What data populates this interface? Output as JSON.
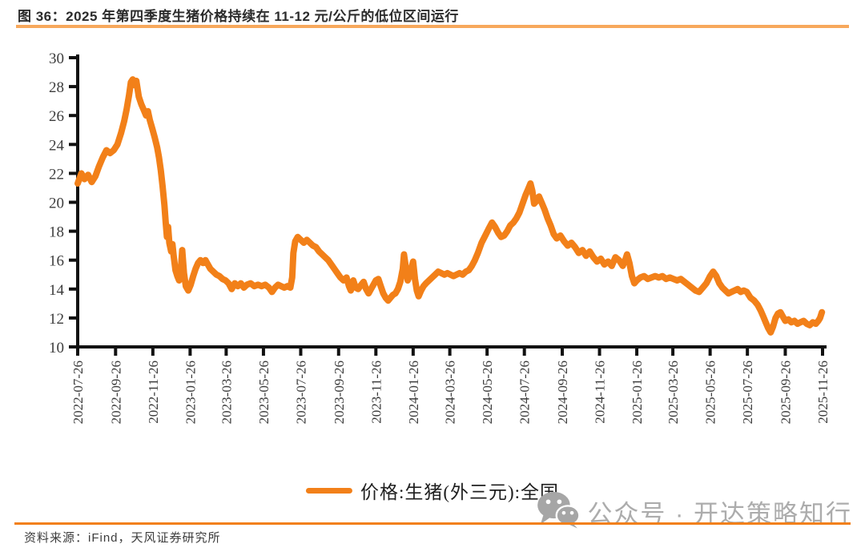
{
  "title": "图 36：2025 年第四季度生猪价格持续在 11-12 元/公斤的低位区间运行",
  "source": "资料来源：iFind，天风证券研究所",
  "watermark": {
    "icon": "wechat-icon",
    "text": "公众号 · 开达策略知行"
  },
  "legend": {
    "label": "价格:生猪(外三元):全国"
  },
  "colors": {
    "line": "#F28019",
    "top_rule": "#F7A85C",
    "bottom_rule": "#F28019",
    "axis": "#111111",
    "tick_label": "#3D3D3D",
    "title": "#2B2B2B",
    "source": "#3C3C3C",
    "watermark": "#ACACAC"
  },
  "chart_data": {
    "type": "line",
    "title": "",
    "xlabel": "",
    "ylabel": "",
    "ylim": [
      10,
      30
    ],
    "yticks": [
      10,
      12,
      14,
      16,
      18,
      20,
      22,
      24,
      26,
      28,
      30
    ],
    "xlim": [
      "2022-07-26",
      "2025-11-26"
    ],
    "xticks": [
      "2022-07-26",
      "2022-09-26",
      "2022-11-26",
      "2023-01-26",
      "2023-03-26",
      "2023-05-26",
      "2023-07-26",
      "2023-09-26",
      "2023-11-26",
      "2024-01-26",
      "2024-03-26",
      "2024-05-26",
      "2024-07-26",
      "2024-09-26",
      "2024-11-26",
      "2025-01-26",
      "2025-03-26",
      "2025-05-26",
      "2025-07-26",
      "2025-09-26",
      "2025-11-26"
    ],
    "grid": false,
    "legend_position": "bottom",
    "series": [
      {
        "name": "价格:生猪(外三元):全国",
        "unit": "元/公斤",
        "points": [
          [
            "2022-07-26",
            21.3
          ],
          [
            "2022-08-01",
            22.0
          ],
          [
            "2022-08-06",
            21.6
          ],
          [
            "2022-08-12",
            21.9
          ],
          [
            "2022-08-18",
            21.4
          ],
          [
            "2022-08-24",
            21.8
          ],
          [
            "2022-08-30",
            22.5
          ],
          [
            "2022-09-05",
            23.1
          ],
          [
            "2022-09-11",
            23.6
          ],
          [
            "2022-09-17",
            23.4
          ],
          [
            "2022-09-23",
            23.6
          ],
          [
            "2022-09-29",
            24.0
          ],
          [
            "2022-10-05",
            24.8
          ],
          [
            "2022-10-10",
            25.6
          ],
          [
            "2022-10-14",
            26.4
          ],
          [
            "2022-10-18",
            27.4
          ],
          [
            "2022-10-21",
            28.3
          ],
          [
            "2022-10-24",
            28.5
          ],
          [
            "2022-10-27",
            28.1
          ],
          [
            "2022-10-30",
            28.4
          ],
          [
            "2022-11-03",
            27.3
          ],
          [
            "2022-11-07",
            26.8
          ],
          [
            "2022-11-11",
            26.4
          ],
          [
            "2022-11-15",
            26.0
          ],
          [
            "2022-11-18",
            26.3
          ],
          [
            "2022-11-21",
            25.7
          ],
          [
            "2022-11-25",
            25.1
          ],
          [
            "2022-11-29",
            24.5
          ],
          [
            "2022-12-03",
            23.8
          ],
          [
            "2022-12-06",
            23.1
          ],
          [
            "2022-12-09",
            22.2
          ],
          [
            "2022-12-12",
            21.1
          ],
          [
            "2022-12-15",
            19.8
          ],
          [
            "2022-12-17",
            18.6
          ],
          [
            "2022-12-19",
            17.6
          ],
          [
            "2022-12-21",
            18.3
          ],
          [
            "2022-12-23",
            17.2
          ],
          [
            "2022-12-26",
            16.6
          ],
          [
            "2022-12-28",
            17.1
          ],
          [
            "2022-12-30",
            16.3
          ],
          [
            "2023-01-02",
            15.3
          ],
          [
            "2023-01-05",
            14.9
          ],
          [
            "2023-01-08",
            14.6
          ],
          [
            "2023-01-11",
            15.4
          ],
          [
            "2023-01-13",
            16.7
          ],
          [
            "2023-01-16",
            15.1
          ],
          [
            "2023-01-19",
            14.2
          ],
          [
            "2023-01-23",
            13.9
          ],
          [
            "2023-01-27",
            14.3
          ],
          [
            "2023-01-31",
            14.9
          ],
          [
            "2023-02-04",
            15.4
          ],
          [
            "2023-02-08",
            15.8
          ],
          [
            "2023-02-12",
            16.0
          ],
          [
            "2023-02-16",
            15.8
          ],
          [
            "2023-02-20",
            16.0
          ],
          [
            "2023-02-24",
            15.7
          ],
          [
            "2023-02-28",
            15.4
          ],
          [
            "2023-03-05",
            15.2
          ],
          [
            "2023-03-10",
            15.0
          ],
          [
            "2023-03-15",
            14.9
          ],
          [
            "2023-03-20",
            14.7
          ],
          [
            "2023-03-25",
            14.6
          ],
          [
            "2023-03-30",
            14.4
          ],
          [
            "2023-04-04",
            14.0
          ],
          [
            "2023-04-09",
            14.4
          ],
          [
            "2023-04-14",
            14.2
          ],
          [
            "2023-04-19",
            14.4
          ],
          [
            "2023-04-24",
            14.1
          ],
          [
            "2023-04-29",
            14.3
          ],
          [
            "2023-05-05",
            14.4
          ],
          [
            "2023-05-11",
            14.2
          ],
          [
            "2023-05-17",
            14.3
          ],
          [
            "2023-05-23",
            14.2
          ],
          [
            "2023-05-29",
            14.3
          ],
          [
            "2023-06-04",
            14.1
          ],
          [
            "2023-06-09",
            13.8
          ],
          [
            "2023-06-14",
            14.1
          ],
          [
            "2023-06-19",
            14.3
          ],
          [
            "2023-06-24",
            14.2
          ],
          [
            "2023-06-29",
            14.1
          ],
          [
            "2023-07-04",
            14.2
          ],
          [
            "2023-07-09",
            14.1
          ],
          [
            "2023-07-12",
            14.8
          ],
          [
            "2023-07-14",
            16.5
          ],
          [
            "2023-07-17",
            17.3
          ],
          [
            "2023-07-21",
            17.6
          ],
          [
            "2023-07-26",
            17.4
          ],
          [
            "2023-07-31",
            17.2
          ],
          [
            "2023-08-05",
            17.4
          ],
          [
            "2023-08-10",
            17.2
          ],
          [
            "2023-08-15",
            17.0
          ],
          [
            "2023-08-20",
            16.9
          ],
          [
            "2023-08-25",
            16.6
          ],
          [
            "2023-08-30",
            16.4
          ],
          [
            "2023-09-04",
            16.2
          ],
          [
            "2023-09-09",
            16.0
          ],
          [
            "2023-09-14",
            15.7
          ],
          [
            "2023-09-19",
            15.4
          ],
          [
            "2023-09-24",
            15.1
          ],
          [
            "2023-09-29",
            14.8
          ],
          [
            "2023-10-04",
            14.6
          ],
          [
            "2023-10-09",
            14.8
          ],
          [
            "2023-10-13",
            14.2
          ],
          [
            "2023-10-16",
            13.9
          ],
          [
            "2023-10-20",
            14.6
          ],
          [
            "2023-10-24",
            14.1
          ],
          [
            "2023-10-28",
            14.0
          ],
          [
            "2023-11-02",
            14.3
          ],
          [
            "2023-11-06",
            14.5
          ],
          [
            "2023-11-10",
            14.0
          ],
          [
            "2023-11-14",
            13.7
          ],
          [
            "2023-11-18",
            14.0
          ],
          [
            "2023-11-22",
            14.3
          ],
          [
            "2023-11-26",
            14.6
          ],
          [
            "2023-11-30",
            14.7
          ],
          [
            "2023-12-04",
            14.2
          ],
          [
            "2023-12-08",
            13.7
          ],
          [
            "2023-12-12",
            13.4
          ],
          [
            "2023-12-16",
            13.2
          ],
          [
            "2023-12-20",
            13.4
          ],
          [
            "2023-12-24",
            13.6
          ],
          [
            "2023-12-28",
            13.7
          ],
          [
            "2024-01-01",
            14.0
          ],
          [
            "2024-01-05",
            14.5
          ],
          [
            "2024-01-09",
            15.4
          ],
          [
            "2024-01-11",
            16.4
          ],
          [
            "2024-01-14",
            15.5
          ],
          [
            "2024-01-17",
            14.6
          ],
          [
            "2024-01-20",
            14.9
          ],
          [
            "2024-01-23",
            15.4
          ],
          [
            "2024-01-26",
            15.9
          ],
          [
            "2024-01-29",
            14.7
          ],
          [
            "2024-02-01",
            13.9
          ],
          [
            "2024-02-04",
            13.5
          ],
          [
            "2024-02-08",
            13.9
          ],
          [
            "2024-02-12",
            14.2
          ],
          [
            "2024-02-16",
            14.4
          ],
          [
            "2024-02-21",
            14.6
          ],
          [
            "2024-02-26",
            14.8
          ],
          [
            "2024-03-02",
            15.0
          ],
          [
            "2024-03-07",
            15.2
          ],
          [
            "2024-03-12",
            15.1
          ],
          [
            "2024-03-17",
            15.0
          ],
          [
            "2024-03-22",
            15.1
          ],
          [
            "2024-03-27",
            15.0
          ],
          [
            "2024-04-01",
            14.9
          ],
          [
            "2024-04-06",
            15.0
          ],
          [
            "2024-04-11",
            15.1
          ],
          [
            "2024-04-16",
            15.0
          ],
          [
            "2024-04-21",
            15.2
          ],
          [
            "2024-04-26",
            15.3
          ],
          [
            "2024-05-01",
            15.6
          ],
          [
            "2024-05-06",
            16.0
          ],
          [
            "2024-05-11",
            16.5
          ],
          [
            "2024-05-17",
            17.2
          ],
          [
            "2024-05-23",
            17.7
          ],
          [
            "2024-05-29",
            18.2
          ],
          [
            "2024-06-03",
            18.6
          ],
          [
            "2024-06-08",
            18.3
          ],
          [
            "2024-06-13",
            17.9
          ],
          [
            "2024-06-18",
            17.6
          ],
          [
            "2024-06-23",
            17.7
          ],
          [
            "2024-06-28",
            18.0
          ],
          [
            "2024-07-03",
            18.4
          ],
          [
            "2024-07-08",
            18.6
          ],
          [
            "2024-07-13",
            18.9
          ],
          [
            "2024-07-18",
            19.3
          ],
          [
            "2024-07-23",
            19.9
          ],
          [
            "2024-07-28",
            20.5
          ],
          [
            "2024-08-01",
            20.9
          ],
          [
            "2024-08-05",
            21.3
          ],
          [
            "2024-08-08",
            20.8
          ],
          [
            "2024-08-11",
            19.9
          ],
          [
            "2024-08-15",
            20.1
          ],
          [
            "2024-08-19",
            20.4
          ],
          [
            "2024-08-23",
            20.0
          ],
          [
            "2024-08-28",
            19.5
          ],
          [
            "2024-09-02",
            18.9
          ],
          [
            "2024-09-07",
            18.4
          ],
          [
            "2024-09-12",
            17.8
          ],
          [
            "2024-09-17",
            17.5
          ],
          [
            "2024-09-23",
            17.7
          ],
          [
            "2024-09-29",
            17.3
          ],
          [
            "2024-10-05",
            17.0
          ],
          [
            "2024-10-11",
            17.2
          ],
          [
            "2024-10-17",
            16.9
          ],
          [
            "2024-10-23",
            16.5
          ],
          [
            "2024-10-29",
            16.7
          ],
          [
            "2024-11-04",
            16.3
          ],
          [
            "2024-11-10",
            16.6
          ],
          [
            "2024-11-16",
            16.2
          ],
          [
            "2024-11-22",
            15.9
          ],
          [
            "2024-11-28",
            16.1
          ],
          [
            "2024-12-04",
            15.7
          ],
          [
            "2024-12-10",
            15.9
          ],
          [
            "2024-12-16",
            15.6
          ],
          [
            "2024-12-22",
            16.2
          ],
          [
            "2024-12-28",
            16.0
          ],
          [
            "2025-01-03",
            15.6
          ],
          [
            "2025-01-07",
            16.0
          ],
          [
            "2025-01-10",
            16.4
          ],
          [
            "2025-01-14",
            15.8
          ],
          [
            "2025-01-18",
            14.9
          ],
          [
            "2025-01-22",
            14.4
          ],
          [
            "2025-01-26",
            14.6
          ],
          [
            "2025-02-01",
            14.8
          ],
          [
            "2025-02-07",
            14.9
          ],
          [
            "2025-02-13",
            14.7
          ],
          [
            "2025-02-19",
            14.8
          ],
          [
            "2025-02-25",
            14.9
          ],
          [
            "2025-03-03",
            14.8
          ],
          [
            "2025-03-09",
            14.9
          ],
          [
            "2025-03-15",
            14.7
          ],
          [
            "2025-03-21",
            14.8
          ],
          [
            "2025-03-27",
            14.7
          ],
          [
            "2025-04-02",
            14.6
          ],
          [
            "2025-04-08",
            14.7
          ],
          [
            "2025-04-14",
            14.5
          ],
          [
            "2025-04-20",
            14.3
          ],
          [
            "2025-04-26",
            14.1
          ],
          [
            "2025-05-02",
            13.9
          ],
          [
            "2025-05-08",
            13.8
          ],
          [
            "2025-05-14",
            14.1
          ],
          [
            "2025-05-20",
            14.4
          ],
          [
            "2025-05-26",
            14.9
          ],
          [
            "2025-05-31",
            15.2
          ],
          [
            "2025-06-05",
            14.9
          ],
          [
            "2025-06-10",
            14.4
          ],
          [
            "2025-06-15",
            14.1
          ],
          [
            "2025-06-20",
            13.9
          ],
          [
            "2025-06-25",
            13.7
          ],
          [
            "2025-06-30",
            13.8
          ],
          [
            "2025-07-05",
            13.9
          ],
          [
            "2025-07-10",
            14.0
          ],
          [
            "2025-07-15",
            13.8
          ],
          [
            "2025-07-20",
            13.9
          ],
          [
            "2025-07-25",
            13.8
          ],
          [
            "2025-07-31",
            13.4
          ],
          [
            "2025-08-06",
            13.2
          ],
          [
            "2025-08-12",
            12.9
          ],
          [
            "2025-08-17",
            12.5
          ],
          [
            "2025-08-21",
            12.1
          ],
          [
            "2025-08-25",
            11.7
          ],
          [
            "2025-08-29",
            11.3
          ],
          [
            "2025-09-02",
            11.0
          ],
          [
            "2025-09-06",
            11.4
          ],
          [
            "2025-09-10",
            12.0
          ],
          [
            "2025-09-14",
            12.3
          ],
          [
            "2025-09-18",
            12.4
          ],
          [
            "2025-09-22",
            12.1
          ],
          [
            "2025-09-26",
            11.8
          ],
          [
            "2025-10-01",
            11.9
          ],
          [
            "2025-10-06",
            11.7
          ],
          [
            "2025-10-11",
            11.8
          ],
          [
            "2025-10-16",
            11.6
          ],
          [
            "2025-10-21",
            11.7
          ],
          [
            "2025-10-26",
            11.8
          ],
          [
            "2025-10-31",
            11.6
          ],
          [
            "2025-11-05",
            11.5
          ],
          [
            "2025-11-10",
            11.7
          ],
          [
            "2025-11-15",
            11.6
          ],
          [
            "2025-11-19",
            11.8
          ],
          [
            "2025-11-22",
            12.0
          ],
          [
            "2025-11-25",
            12.4
          ]
        ]
      }
    ]
  }
}
